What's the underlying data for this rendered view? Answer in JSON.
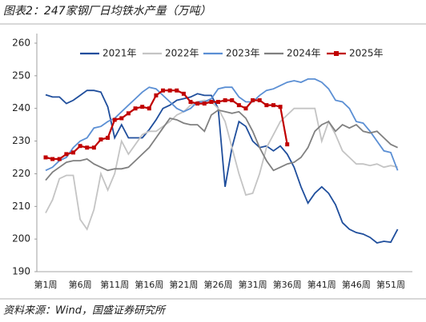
{
  "chart_data": {
    "type": "line",
    "title": "图表2：247家钢厂日均铁水产量（万吨）",
    "source": "资料来源：Wind，国盛证券研究所",
    "categories": [
      "第1周",
      null,
      null,
      null,
      null,
      "第6周",
      null,
      null,
      null,
      null,
      "第11周",
      null,
      null,
      null,
      null,
      "第16周",
      null,
      null,
      null,
      null,
      "第21周",
      null,
      null,
      null,
      null,
      "第26周",
      null,
      null,
      null,
      null,
      "第31周",
      null,
      null,
      null,
      null,
      "第36周",
      null,
      null,
      null,
      null,
      "第41周",
      null,
      null,
      null,
      null,
      "第46周",
      null,
      null,
      null,
      null,
      "第51周",
      null,
      null
    ],
    "ylim": [
      190,
      260
    ],
    "yticks": [
      190,
      200,
      210,
      220,
      230,
      240,
      250,
      260
    ],
    "grid": false,
    "series": [
      {
        "name": "2021年",
        "color": "#1f4e9c",
        "values": [
          244.2,
          243.5,
          243.5,
          241.5,
          242.5,
          244,
          245.5,
          245.5,
          245,
          240.5,
          231,
          235,
          231,
          231,
          231,
          233.5,
          236.5,
          240,
          241,
          242.5,
          243,
          243.5,
          244.5,
          244,
          244,
          240,
          216,
          228,
          236,
          234.5,
          230,
          228,
          228.5,
          227,
          228.5,
          226,
          222,
          216,
          211,
          214,
          216,
          214,
          210.5,
          205,
          203,
          202,
          201.5,
          200.5,
          198.8,
          199.3,
          199,
          203,
          null
        ]
      },
      {
        "name": "2022年",
        "color": "#c4c4c4",
        "values": [
          208,
          212,
          218.5,
          219.5,
          219.5,
          206,
          203,
          209,
          220,
          215,
          220,
          230,
          226,
          229,
          232,
          233,
          233,
          234.5,
          236,
          238,
          239,
          241,
          242,
          242.5,
          242,
          240,
          236,
          228,
          220,
          213.5,
          214,
          220,
          228,
          232,
          236,
          238,
          240,
          240,
          240,
          240,
          230,
          236,
          232,
          227,
          225,
          223,
          223,
          222.5,
          223,
          222,
          222.5,
          222,
          null
        ]
      },
      {
        "name": "2023年",
        "color": "#5b8fd4",
        "values": [
          221,
          222,
          224,
          225,
          228,
          230,
          231,
          234,
          234.5,
          236,
          237,
          239,
          241,
          243,
          245,
          246.5,
          246,
          244,
          242,
          240,
          239,
          240,
          242,
          242,
          243,
          246,
          246.5,
          246.5,
          243.5,
          242,
          242,
          244,
          245.5,
          246,
          247,
          248,
          248.5,
          248,
          249,
          249,
          248,
          246,
          242.5,
          242,
          240,
          236,
          235.5,
          233,
          230,
          227,
          226.5,
          221,
          null
        ]
      },
      {
        "name": "2024年",
        "color": "#808080",
        "values": [
          218,
          220.5,
          222,
          223.5,
          224,
          224,
          224.5,
          223,
          222,
          221,
          221.5,
          221.5,
          222,
          224,
          226,
          228,
          231,
          234,
          237,
          236.5,
          235.5,
          235,
          235,
          233,
          238,
          239.5,
          239,
          238.5,
          239,
          237,
          233,
          228,
          224,
          221,
          222,
          223,
          223.5,
          225,
          228,
          233,
          235,
          236,
          233,
          235,
          234,
          235,
          233,
          232.5,
          233,
          231,
          229,
          228,
          null
        ]
      },
      {
        "name": "2025年",
        "color": "#c00000",
        "markers": true,
        "values": [
          225,
          224.5,
          224.5,
          226,
          226.5,
          228.5,
          228,
          228,
          230.5,
          231,
          236.5,
          237,
          238.5,
          240,
          240.5,
          240,
          244,
          245.5,
          245.5,
          245.5,
          244.5,
          242,
          241.5,
          241.5,
          242,
          242,
          242.5,
          242.5,
          241,
          240,
          242.5,
          242.5,
          241,
          241,
          240.5,
          229,
          null,
          null,
          null,
          null,
          null,
          null,
          null,
          null,
          null,
          null,
          null,
          null,
          null,
          null,
          null,
          null,
          null
        ]
      }
    ]
  }
}
